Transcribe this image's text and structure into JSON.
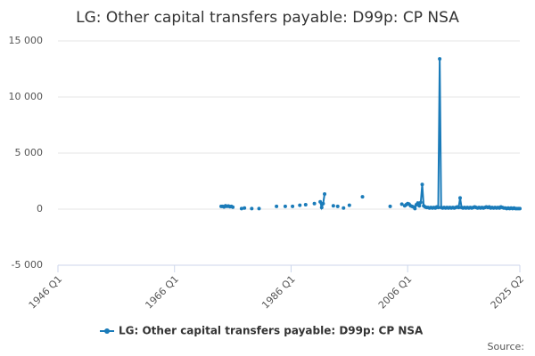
{
  "chart_data": {
    "type": "line",
    "title": "LG: Other capital transfers payable: D99p: CP NSA",
    "source": "Source:",
    "xlim": [
      "1946 Q1",
      "2025 Q2"
    ],
    "xticks": [
      "1946 Q1",
      "1966 Q1",
      "1986 Q1",
      "2006 Q1",
      "2025 Q2"
    ],
    "ylim": [
      -5000,
      15000
    ],
    "yticks": [
      {
        "value": -5000,
        "label": "-5 000"
      },
      0,
      {
        "value": 5000,
        "label": "5 000"
      },
      {
        "value": 10000,
        "label": "10 000"
      },
      {
        "value": 15000,
        "label": "15 000"
      }
    ],
    "grid": true,
    "legend": "bottom",
    "x": [
      "1974 Q1",
      "1974 Q2",
      "1974 Q3",
      "1974 Q4",
      "1975 Q1",
      "1975 Q2",
      "1975 Q3",
      "1975 Q4",
      "1976 Q1",
      null,
      "1977 Q3",
      "1978 Q1",
      null,
      "1979 Q2",
      null,
      "1980 Q3",
      null,
      "1983 Q3",
      null,
      "1985 Q1",
      null,
      "1986 Q2",
      null,
      "1987 Q3",
      null,
      "1988 Q3",
      null,
      "1990 Q1",
      null,
      "1991 Q1",
      "1991 Q2",
      "1991 Q3",
      "1991 Q4",
      null,
      "1993 Q2",
      null,
      "1994 Q1",
      null,
      "1995 Q1",
      null,
      "1996 Q1",
      null,
      "1998 Q2",
      null,
      "2003 Q1",
      null,
      "2005 Q1",
      null,
      "2005 Q3",
      "2005 Q4",
      "2006 Q1",
      "2006 Q2",
      "2006 Q3",
      "2006 Q4",
      "2007 Q1",
      "2007 Q2",
      "2007 Q3",
      "2007 Q4",
      "2008 Q1",
      "2008 Q2",
      "2008 Q3",
      "2008 Q4",
      "2009 Q1",
      "2009 Q2",
      "2009 Q3",
      "2009 Q4",
      "2010 Q1",
      "2010 Q2",
      "2010 Q3",
      "2010 Q4",
      "2011 Q1",
      "2011 Q2",
      "2011 Q3",
      "2011 Q4",
      "2012 Q1",
      "2012 Q2",
      "2012 Q3",
      "2012 Q4",
      "2013 Q1",
      "2013 Q2",
      "2013 Q3",
      "2013 Q4",
      "2014 Q1",
      "2014 Q2",
      "2014 Q3",
      "2014 Q4",
      "2015 Q1",
      "2015 Q2",
      "2015 Q3",
      "2015 Q4",
      "2016 Q1",
      "2016 Q2",
      "2016 Q3",
      "2016 Q4",
      "2017 Q1",
      "2017 Q2",
      "2017 Q3",
      "2017 Q4",
      "2018 Q1",
      "2018 Q2",
      "2018 Q3",
      "2018 Q4",
      "2019 Q1",
      "2019 Q2",
      "2019 Q3",
      "2019 Q4",
      "2020 Q1",
      "2020 Q2",
      "2020 Q3",
      "2020 Q4",
      "2021 Q1",
      "2021 Q2",
      "2021 Q3",
      "2021 Q4",
      "2022 Q1",
      "2022 Q2",
      "2022 Q3",
      "2022 Q4",
      "2023 Q1",
      "2023 Q2",
      "2023 Q3",
      "2023 Q4",
      "2024 Q1",
      "2024 Q2",
      "2024 Q3",
      "2024 Q4",
      "2025 Q1",
      "2025 Q2"
    ],
    "series": [
      {
        "name": "LG: Other capital transfers payable: D99p: CP NSA",
        "color": "#1a7bb9",
        "values": [
          250,
          250,
          200,
          300,
          250,
          280,
          220,
          250,
          180,
          null,
          50,
          100,
          null,
          50,
          null,
          50,
          null,
          250,
          null,
          250,
          null,
          250,
          null,
          350,
          null,
          400,
          null,
          500,
          null,
          650,
          150,
          500,
          1350,
          null,
          300,
          null,
          250,
          null,
          100,
          null,
          350,
          null,
          1100,
          null,
          250,
          null,
          450,
          null,
          300,
          400,
          500,
          450,
          300,
          250,
          200,
          50,
          400,
          550,
          300,
          600,
          2200,
          300,
          200,
          150,
          150,
          100,
          150,
          100,
          150,
          100,
          200,
          150,
          13400,
          150,
          100,
          150,
          100,
          150,
          100,
          150,
          100,
          150,
          100,
          150,
          200,
          150,
          1000,
          150,
          100,
          150,
          100,
          150,
          100,
          150,
          100,
          150,
          200,
          150,
          100,
          150,
          100,
          150,
          100,
          150,
          200,
          150,
          200,
          100,
          150,
          100,
          150,
          100,
          150,
          100,
          200,
          150,
          100,
          100,
          50,
          100,
          50,
          100,
          50,
          100,
          50,
          50,
          50,
          50
        ]
      }
    ]
  }
}
